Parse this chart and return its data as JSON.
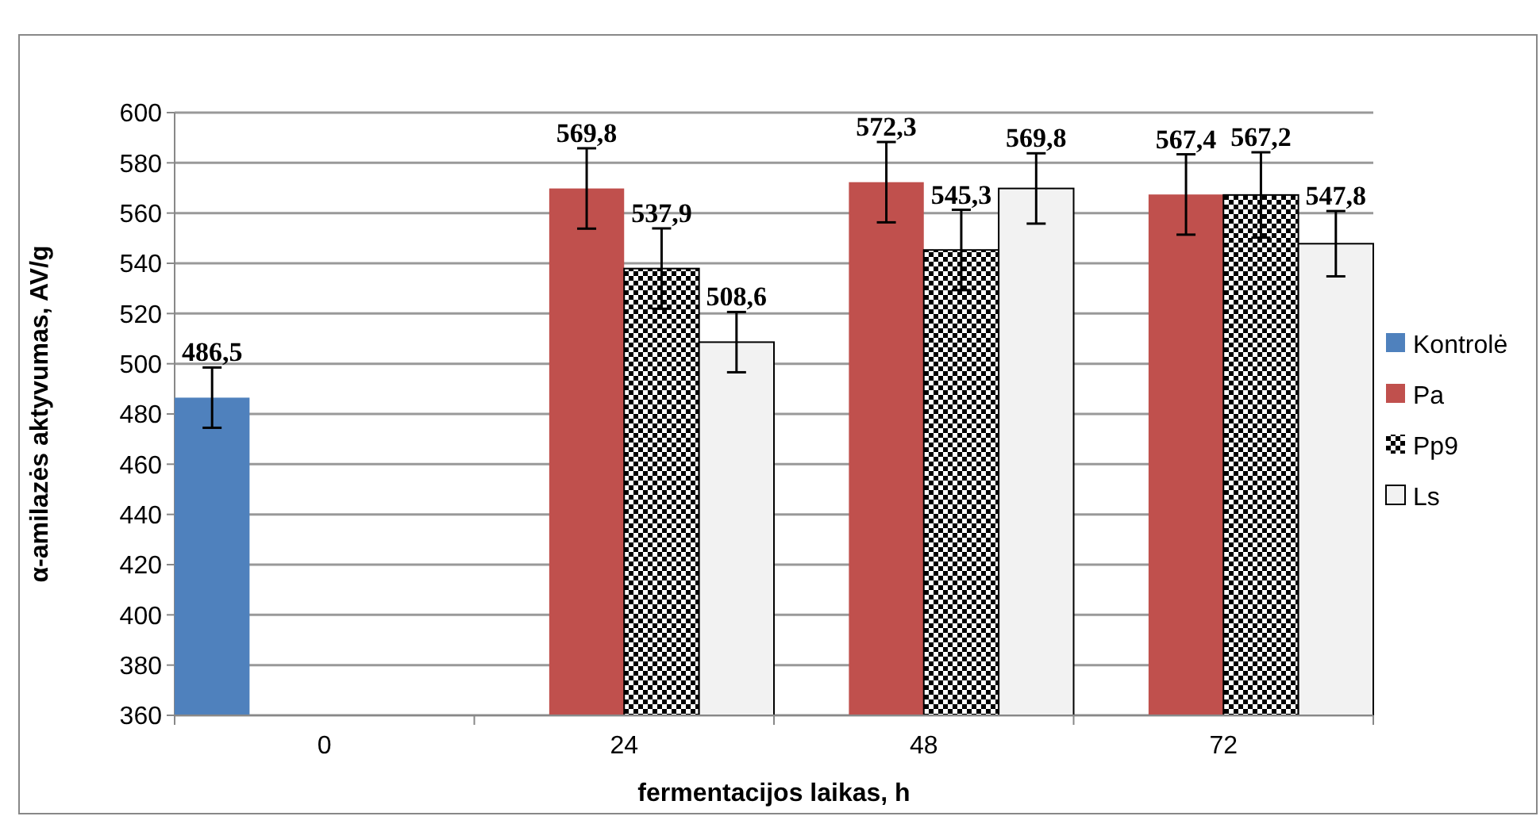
{
  "chart_data": {
    "type": "bar",
    "xlabel": "fermentacijos laikas, h",
    "ylabel": "α-amilazės aktyvumas, AV/g",
    "categories": [
      "0",
      "24",
      "48",
      "72"
    ],
    "ylim": [
      360,
      600
    ],
    "yticks": [
      360,
      380,
      400,
      420,
      440,
      460,
      480,
      500,
      520,
      540,
      560,
      580,
      600
    ],
    "grid": "y",
    "legend": "right",
    "series": [
      {
        "name": "Kontrolė",
        "color": "#4f81bd",
        "values": [
          486.5,
          null,
          null,
          null
        ],
        "errors": [
          12,
          null,
          null,
          null
        ],
        "value_labels": [
          "486,5",
          null,
          null,
          null
        ]
      },
      {
        "name": "Pa",
        "color": "#c0504d",
        "values": [
          null,
          569.8,
          572.3,
          567.4
        ],
        "errors": [
          null,
          16,
          16,
          16
        ],
        "value_labels": [
          null,
          "569,8",
          "572,3",
          "567,4"
        ]
      },
      {
        "name": "Pp9",
        "color": "#000000",
        "values": [
          null,
          537.9,
          545.3,
          567.2
        ],
        "errors": [
          null,
          16,
          16,
          17
        ],
        "value_labels": [
          null,
          "537,9",
          "545,3",
          "567,2"
        ]
      },
      {
        "name": "Ls",
        "color": "#f2f2f2",
        "values": [
          null,
          508.6,
          569.8,
          547.8
        ],
        "errors": [
          null,
          12,
          14,
          13
        ],
        "value_labels": [
          null,
          "508,6",
          "569,8",
          "547,8"
        ]
      }
    ]
  }
}
